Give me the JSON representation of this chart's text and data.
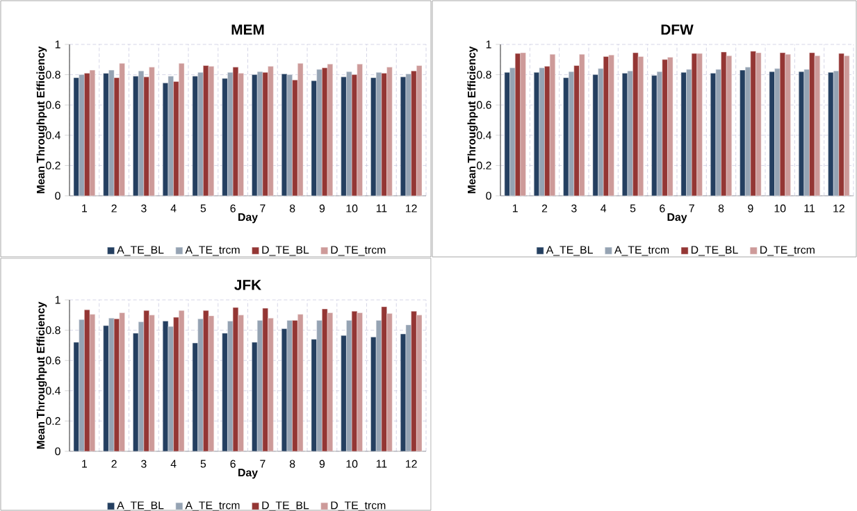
{
  "chart_data": [
    {
      "type": "bar",
      "title": "MEM",
      "xlabel": "Day",
      "ylabel": "Mean Throughput Efficiency",
      "categories": [
        "1",
        "2",
        "3",
        "4",
        "5",
        "6",
        "7",
        "8",
        "9",
        "10",
        "11",
        "12"
      ],
      "ylim": [
        0,
        1
      ],
      "yticks": [
        0,
        0.2,
        0.4,
        0.6,
        0.8,
        1
      ],
      "grid": true,
      "legend": "bottom",
      "series": [
        {
          "name": "A_TE_BL",
          "color": "#243f60",
          "values": [
            0.78,
            0.81,
            0.79,
            0.745,
            0.79,
            0.775,
            0.8,
            0.805,
            0.76,
            0.785,
            0.78,
            0.785
          ]
        },
        {
          "name": "A_TE_trcm",
          "color": "#95a3b3",
          "values": [
            0.8,
            0.83,
            0.825,
            0.79,
            0.815,
            0.815,
            0.82,
            0.8,
            0.835,
            0.82,
            0.815,
            0.805
          ]
        },
        {
          "name": "D_TE_BL",
          "color": "#943634",
          "values": [
            0.81,
            0.78,
            0.785,
            0.755,
            0.86,
            0.85,
            0.815,
            0.765,
            0.845,
            0.8,
            0.81,
            0.825
          ]
        },
        {
          "name": "D_TE_trcm",
          "color": "#cd9a99",
          "values": [
            0.83,
            0.875,
            0.85,
            0.875,
            0.855,
            0.81,
            0.855,
            0.875,
            0.87,
            0.87,
            0.85,
            0.86
          ]
        }
      ]
    },
    {
      "type": "bar",
      "title": "DFW",
      "xlabel": "Day",
      "ylabel": "Mean Throughput Efficiency",
      "categories": [
        "1",
        "2",
        "3",
        "4",
        "5",
        "6",
        "7",
        "8",
        "9",
        "10",
        "11",
        "12"
      ],
      "ylim": [
        0,
        1
      ],
      "yticks": [
        0,
        0.2,
        0.4,
        0.6,
        0.8,
        1
      ],
      "grid": true,
      "legend": "bottom",
      "series": [
        {
          "name": "A_TE_BL",
          "color": "#243f60",
          "values": [
            0.815,
            0.815,
            0.78,
            0.8,
            0.81,
            0.795,
            0.815,
            0.81,
            0.83,
            0.82,
            0.82,
            0.815
          ]
        },
        {
          "name": "A_TE_trcm",
          "color": "#95a3b3",
          "values": [
            0.845,
            0.845,
            0.82,
            0.84,
            0.825,
            0.82,
            0.835,
            0.835,
            0.85,
            0.84,
            0.835,
            0.825
          ]
        },
        {
          "name": "D_TE_BL",
          "color": "#943634",
          "values": [
            0.94,
            0.855,
            0.86,
            0.92,
            0.945,
            0.9,
            0.94,
            0.95,
            0.955,
            0.945,
            0.945,
            0.94
          ]
        },
        {
          "name": "D_TE_trcm",
          "color": "#cd9a99",
          "values": [
            0.945,
            0.935,
            0.935,
            0.93,
            0.92,
            0.915,
            0.94,
            0.925,
            0.945,
            0.935,
            0.925,
            0.925
          ]
        }
      ]
    },
    {
      "type": "bar",
      "title": "JFK",
      "xlabel": "Day",
      "ylabel": "Mean Throughput Efficiency",
      "categories": [
        "1",
        "2",
        "3",
        "4",
        "5",
        "6",
        "7",
        "8",
        "9",
        "10",
        "11",
        "12"
      ],
      "ylim": [
        0,
        1
      ],
      "yticks": [
        0,
        0.2,
        0.4,
        0.6,
        0.8,
        1
      ],
      "grid": true,
      "legend": "bottom",
      "series": [
        {
          "name": "A_TE_BL",
          "color": "#243f60",
          "values": [
            0.72,
            0.83,
            0.78,
            0.86,
            0.715,
            0.78,
            0.72,
            0.81,
            0.74,
            0.765,
            0.755,
            0.775
          ]
        },
        {
          "name": "A_TE_trcm",
          "color": "#95a3b3",
          "values": [
            0.87,
            0.88,
            0.855,
            0.825,
            0.875,
            0.86,
            0.865,
            0.865,
            0.865,
            0.865,
            0.865,
            0.835
          ]
        },
        {
          "name": "D_TE_BL",
          "color": "#943634",
          "values": [
            0.935,
            0.875,
            0.93,
            0.885,
            0.93,
            0.95,
            0.945,
            0.865,
            0.94,
            0.925,
            0.955,
            0.925
          ]
        },
        {
          "name": "D_TE_trcm",
          "color": "#cd9a99",
          "values": [
            0.905,
            0.915,
            0.9,
            0.93,
            0.895,
            0.9,
            0.88,
            0.905,
            0.915,
            0.915,
            0.91,
            0.9
          ]
        }
      ]
    }
  ]
}
